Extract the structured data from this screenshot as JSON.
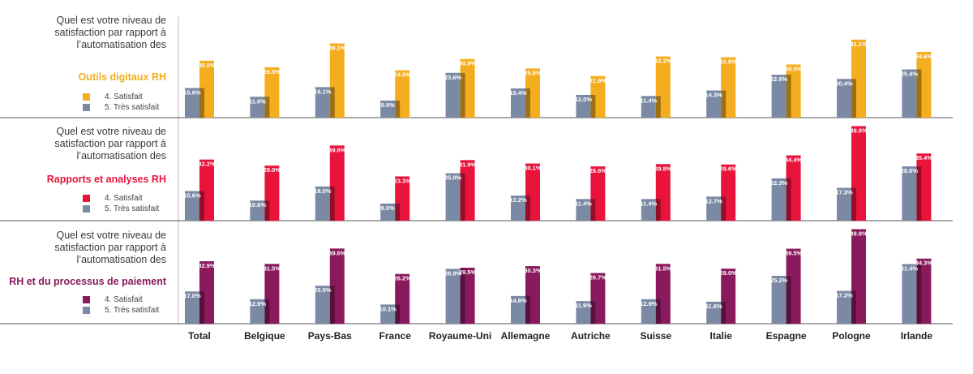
{
  "question": [
    "Quel est votre niveau de",
    "satisfaction par rapport à",
    "l’automatisation des"
  ],
  "legend": {
    "satisfait": "4. Satisfait",
    "tres_satisfait": "5. Très satisfait"
  },
  "colors": {
    "tres_satisfait": "#7b8aa4",
    "outils": "#f4ad1e",
    "rapports": "#e8143c",
    "paie": "#8a1a5e",
    "axis": "#555555",
    "label_text": "#ffffff"
  },
  "chart_data": {
    "type": "bar",
    "categories": [
      "Total",
      "Belgique",
      "Pays-Bas",
      "France",
      "Royaume-Uni",
      "Allemagne",
      "Autriche",
      "Suisse",
      "Italie",
      "Espagne",
      "Pologne",
      "Irlande"
    ],
    "panels": [
      {
        "metric": "Outils digitaux RH",
        "color_key": "outils",
        "series": [
          {
            "name": "5. Très satisfait",
            "values": [
              15.6,
              11.0,
              16.1,
              9.0,
              23.6,
              15.4,
              12.0,
              11.4,
              14.3,
              22.6,
              20.4,
              25.4
            ]
          },
          {
            "name": "4. Satisfait",
            "values": [
              30.0,
              26.5,
              39.1,
              24.9,
              30.9,
              25.9,
              21.9,
              32.2,
              31.8,
              28.0,
              41.1,
              34.6
            ]
          }
        ]
      },
      {
        "metric": "Rapports et analyses RH",
        "color_key": "rapports",
        "series": [
          {
            "name": "5. Très satisfait",
            "values": [
              15.6,
              10.6,
              18.0,
              9.0,
              25.0,
              13.2,
              11.4,
              11.4,
              12.7,
              22.3,
              17.3,
              28.6
            ]
          },
          {
            "name": "4. Satisfait",
            "values": [
              32.2,
              29.0,
              39.6,
              23.3,
              31.9,
              30.1,
              28.6,
              29.8,
              29.6,
              34.4,
              49.8,
              35.4
            ]
          }
        ]
      },
      {
        "metric": "RH et du processus de paiement",
        "color_key": "paie",
        "series": [
          {
            "name": "5. Très satisfait",
            "values": [
              17.0,
              12.9,
              20.0,
              10.1,
              28.9,
              14.6,
              11.9,
              12.9,
              11.6,
              25.2,
              17.3,
              31.4
            ]
          },
          {
            "name": "4. Satisfait",
            "values": [
              32.9,
              31.5,
              39.6,
              26.2,
              29.5,
              30.3,
              26.7,
              31.5,
              29.0,
              39.5,
              49.8,
              34.3
            ]
          }
        ]
      }
    ],
    "ylim": [
      0,
      50
    ]
  }
}
